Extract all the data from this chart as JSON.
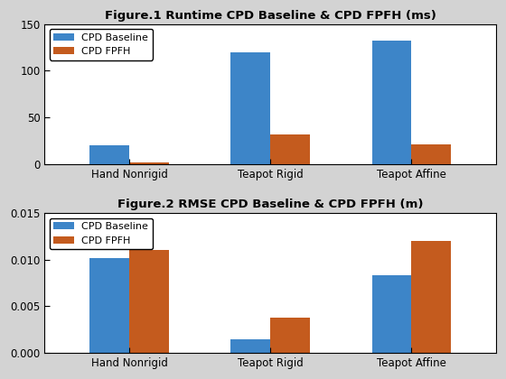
{
  "fig1_title": "Figure.1 Runtime CPD Baseline & CPD FPFH (ms)",
  "fig2_title": "Figure.2 RMSE CPD Baseline & CPD FPFH (m)",
  "categories": [
    "Hand Nonrigid",
    "Teapot Rigid",
    "Teapot Affine"
  ],
  "runtime_baseline": [
    20,
    120,
    132
  ],
  "runtime_fpfh": [
    2,
    32,
    21
  ],
  "rmse_baseline": [
    0.0102,
    0.0015,
    0.0083
  ],
  "rmse_fpfh": [
    0.011,
    0.0038,
    0.012
  ],
  "color_baseline": "#3d85c8",
  "color_fpfh": "#c45b1e",
  "legend_baseline": "CPD Baseline",
  "legend_fpfh": "CPD FPFH",
  "fig1_ylim": [
    0,
    150
  ],
  "fig2_ylim": [
    0,
    0.015
  ],
  "fig1_yticks": [
    0,
    50,
    100,
    150
  ],
  "fig2_yticks": [
    0,
    0.005,
    0.01,
    0.015
  ],
  "fig_facecolor": "#d3d3d3",
  "ax_facecolor": "#ffffff",
  "bar_width": 0.28
}
